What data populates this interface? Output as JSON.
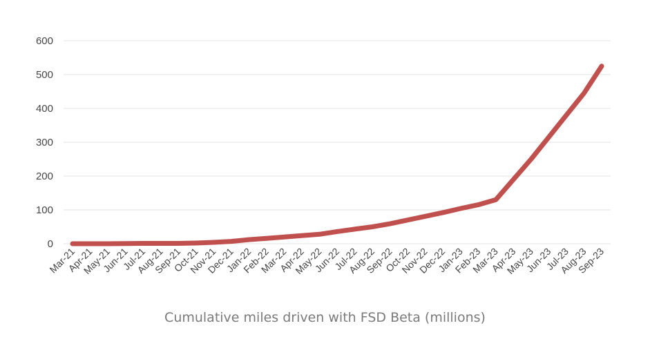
{
  "chart_data": {
    "type": "line",
    "title": "",
    "xlabel": "Cumulative miles driven with FSD Beta (millions)",
    "ylabel": "",
    "ylim": [
      0,
      600
    ],
    "yticks": [
      "0",
      "100",
      "200",
      "300",
      "400",
      "500",
      "600"
    ],
    "grid": "horizontal",
    "line_color": "#c0504d",
    "categories": [
      "Mar-21",
      "Apr-21",
      "May-21",
      "Jun-21",
      "Jul-21",
      "Aug-21",
      "Sep-21",
      "Oct-21",
      "Nov-21",
      "Dec-21",
      "Jan-22",
      "Feb-22",
      "Mar-22",
      "Apr-22",
      "May-22",
      "Jun-22",
      "Jul-22",
      "Aug-22",
      "Sep-22",
      "Oct-22",
      "Nov-22",
      "Dec-22",
      "Jan-23",
      "Feb-23",
      "Mar-23",
      "Apr-23",
      "May-23",
      "Jun-23",
      "Jul-23",
      "Aug-23",
      "Sep-23"
    ],
    "series": [
      {
        "values": [
          0,
          0,
          0,
          0.5,
          1,
          1,
          1,
          2,
          4,
          7,
          12,
          16,
          20,
          24,
          28,
          36,
          43,
          50,
          59,
          70,
          81,
          92,
          104,
          115,
          130,
          190,
          250,
          315,
          380,
          445,
          525
        ]
      }
    ]
  }
}
